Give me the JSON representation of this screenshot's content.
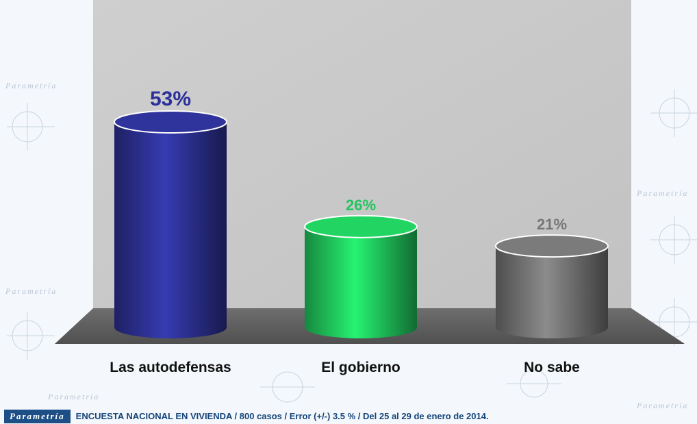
{
  "chart_data": {
    "type": "bar",
    "categories": [
      "Las autodefensas",
      "El gobierno",
      "No sabe"
    ],
    "values": [
      53,
      26,
      21
    ],
    "value_labels": [
      "53%",
      "26%",
      "21%"
    ],
    "colors": [
      "#2b2f8e",
      "#1fc25a",
      "#707070"
    ],
    "label_colors": [
      "#2b2f9a",
      "#22c55e",
      "#777777"
    ],
    "ylim": [
      0,
      60
    ],
    "grid": false,
    "legend": "none"
  },
  "footer": {
    "brand": "Parametría",
    "source": "ENCUESTA NACIONAL EN VIVIENDA / 800 casos / Error (+/-) 3.5 % / Del 25 al 29 de enero de 2014."
  },
  "watermark_text": "Parametría"
}
